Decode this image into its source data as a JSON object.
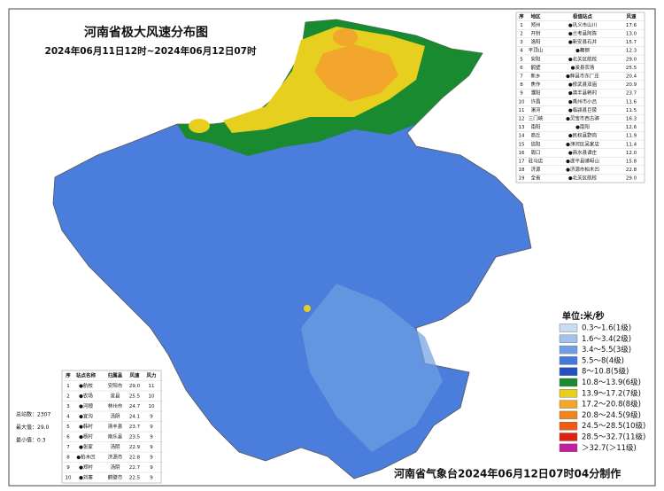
{
  "header": {
    "title": "河南省极大风速分布图",
    "subtitle": "2024年06月11日12时~2024年06月12日07时"
  },
  "region_table": {
    "columns": [
      "序",
      "地区",
      "极值站点",
      "风速"
    ],
    "rows": [
      [
        "1",
        "郑州",
        "●巩义市山川",
        "17.6"
      ],
      [
        "2",
        "开封",
        "●兰考县阿陈",
        "13.0"
      ],
      [
        "3",
        "洛阳",
        "●新安县石井",
        "15.7"
      ],
      [
        "4",
        "平顶山",
        "●舞钢",
        "12.3"
      ],
      [
        "5",
        "安阳",
        "●北关区航校",
        "29.0"
      ],
      [
        "6",
        "鹤壁",
        "●浚县农场",
        "25.5"
      ],
      [
        "7",
        "新乡",
        "●辉县市东厂庄",
        "20.4"
      ],
      [
        "8",
        "焦作",
        "●修武县双庙",
        "20.9"
      ],
      [
        "9",
        "濮阳",
        "●清丰县韩村",
        "23.7"
      ],
      [
        "10",
        "许昌",
        "●禹州市小吕",
        "11.6"
      ],
      [
        "11",
        "漯河",
        "●临颍县巨陵",
        "11.5"
      ],
      [
        "12",
        "三门峡",
        "●灵宝市西古驿",
        "16.3"
      ],
      [
        "13",
        "南阳",
        "●南阳",
        "12.6"
      ],
      [
        "14",
        "商丘",
        "●民权县野岗",
        "11.9"
      ],
      [
        "15",
        "信阳",
        "●浉河区吴家店",
        "11.4"
      ],
      [
        "16",
        "周口",
        "●商水县谭庄",
        "12.0"
      ],
      [
        "17",
        "驻马店",
        "●遂平县嵖岈山",
        "15.8"
      ],
      [
        "18",
        "济源",
        "●济源市柏木凹",
        "22.8"
      ],
      [
        "19",
        "全省",
        "●北关区航校",
        "29.0"
      ]
    ]
  },
  "top_stations": {
    "columns": [
      "序",
      "站点名称",
      "归属县",
      "风速",
      "风力"
    ],
    "rows": [
      [
        "1",
        "●航校",
        "安阳市",
        "29.0",
        "11"
      ],
      [
        "2",
        "●农场",
        "浚县",
        "25.5",
        "10"
      ],
      [
        "3",
        "●河顺",
        "林州市",
        "24.7",
        "10"
      ],
      [
        "4",
        "●宜沟",
        "汤阴",
        "24.1",
        "9"
      ],
      [
        "5",
        "●韩村",
        "清丰县",
        "23.7",
        "9"
      ],
      [
        "6",
        "●杨村",
        "南乐县",
        "23.5",
        "9"
      ],
      [
        "7",
        "●张家",
        "汤阴",
        "22.9",
        "9"
      ],
      [
        "8",
        "●柏木凹",
        "济源市",
        "22.8",
        "9"
      ],
      [
        "9",
        "●郑村",
        "汤阴",
        "22.7",
        "9"
      ],
      [
        "10",
        "●刘寨",
        "鹤壁市",
        "22.5",
        "9"
      ]
    ]
  },
  "stats": [
    "总站数：2307",
    "最大值：29.0",
    "最小值：0.3"
  ],
  "legend": {
    "title": "单位:米/秒",
    "items": [
      {
        "label": "0.3～1.6(1级)",
        "color": "#c8dcf2"
      },
      {
        "label": "1.6～3.4(2级)",
        "color": "#a3c1ec"
      },
      {
        "label": "3.4～5.5(3级)",
        "color": "#6f9fe2"
      },
      {
        "label": "5.5～8(4级)",
        "color": "#4579d8"
      },
      {
        "label": "8～10.8(5级)",
        "color": "#2450c0"
      },
      {
        "label": "10.8～13.9(6级)",
        "color": "#1a8a30"
      },
      {
        "label": "13.9～17.2(7级)",
        "color": "#e6cf1e"
      },
      {
        "label": "17.2～20.8(8级)",
        "color": "#f2a62c"
      },
      {
        "label": "20.8～24.5(9级)",
        "color": "#f08420"
      },
      {
        "label": "24.5～28.5(10级)",
        "color": "#f05a12"
      },
      {
        "label": "28.5～32.7(11级)",
        "color": "#e02010"
      },
      {
        "label": "＞32.7(＞11级)",
        "color": "#c020a0"
      }
    ]
  },
  "footer": "河南省气象台2024年06月12日07时04分制作"
}
